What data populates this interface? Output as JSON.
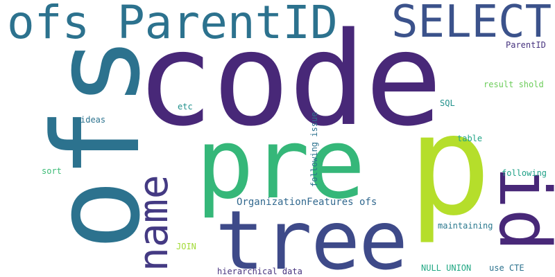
{
  "words": {
    "code": {
      "text": "code",
      "color": "#482878"
    },
    "pre": {
      "text": "pre",
      "color": "#35b779"
    },
    "p": {
      "text": "p",
      "color": "#b5de2b"
    },
    "ofs_vertical": {
      "text": "ofs",
      "color": "#2c728e"
    },
    "ofs_parentid": {
      "text": "ofs ParentID",
      "color": "#2c728e"
    },
    "select": {
      "text": "SELECT",
      "color": "#3b528b"
    },
    "tree": {
      "text": "tree",
      "color": "#3e4a89"
    },
    "id": {
      "text": "id",
      "color": "#482878"
    },
    "name": {
      "text": "name",
      "color": "#443a83"
    },
    "organization_features": {
      "text": "OrganizationFeatures ofs",
      "color": "#31688e"
    },
    "following_issue": {
      "text": "following issue",
      "color": "#2c728e"
    },
    "parentid_small": {
      "text": "ParentID",
      "color": "#46327e"
    },
    "result_shold": {
      "text": "result shold",
      "color": "#6ccd5a"
    },
    "etc": {
      "text": "etc",
      "color": "#21918c"
    },
    "sql": {
      "text": "SQL",
      "color": "#21918c"
    },
    "ideas": {
      "text": "ideas",
      "color": "#2c728e"
    },
    "table": {
      "text": "table",
      "color": "#20a486"
    },
    "sort": {
      "text": "sort",
      "color": "#3bbb75"
    },
    "following": {
      "text": "following",
      "color": "#1fa187"
    },
    "maintaining": {
      "text": "maintaining",
      "color": "#2a788e"
    },
    "join": {
      "text": "JOIN",
      "color": "#a2da37"
    },
    "null_union": {
      "text": "NULL UNION",
      "color": "#22a884"
    },
    "use_cte": {
      "text": "use CTE",
      "color": "#2c728e"
    },
    "hierarchical_data": {
      "text": "hierarchical data",
      "color": "#46327e"
    }
  }
}
